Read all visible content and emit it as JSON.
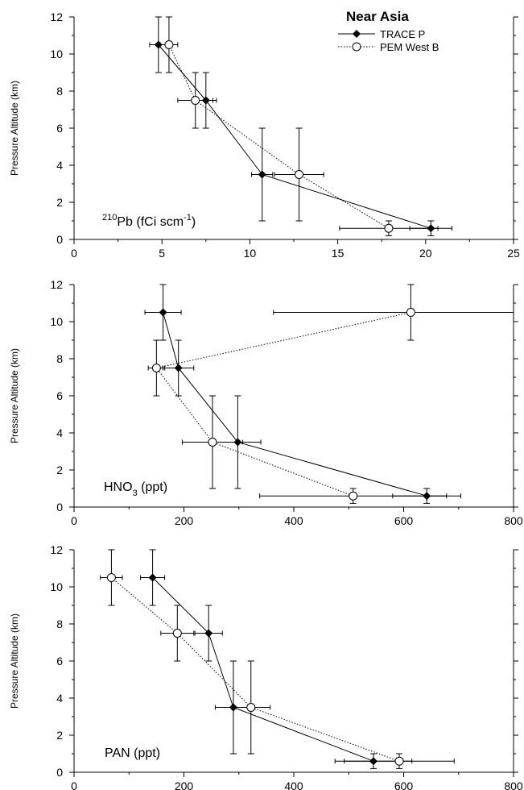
{
  "figure": {
    "title": "Near Asia",
    "legend": [
      {
        "label": "TRACE P",
        "marker": "filled-diamond",
        "line": "solid"
      },
      {
        "label": "PEM West B",
        "marker": "open-circle",
        "line": "dotted"
      }
    ]
  },
  "chart_data": [
    {
      "type": "scatter",
      "species_main": "Pb (fCi scm",
      "species_pre": "210",
      "species_sup": "-1",
      "species_post": ")",
      "ylabel": "Pressure Altitude (km)",
      "xlim": [
        0,
        25
      ],
      "ylim": [
        0,
        12
      ],
      "xticks": [
        "0",
        "5",
        "10",
        "15",
        "20",
        "25"
      ],
      "yticks": [
        "0",
        "2",
        "4",
        "6",
        "8",
        "10",
        "12"
      ],
      "series": [
        {
          "name": "TRACE P",
          "points": [
            {
              "x": 4.8,
              "y": 10.5,
              "xerr": 0.5,
              "ylo": 9,
              "yhi": 12
            },
            {
              "x": 7.5,
              "y": 7.5,
              "xerr": 0.6,
              "ylo": 6,
              "yhi": 9
            },
            {
              "x": 10.7,
              "y": 3.5,
              "xerr": 0.6,
              "ylo": 1,
              "yhi": 6
            },
            {
              "x": 20.3,
              "y": 0.6,
              "xerr": 1.2,
              "ylo": 0.2,
              "yhi": 1
            }
          ]
        },
        {
          "name": "PEM West B",
          "points": [
            {
              "x": 5.4,
              "y": 10.5,
              "xerr": 0.5,
              "ylo": 9,
              "yhi": 12
            },
            {
              "x": 6.9,
              "y": 7.5,
              "xerr": 1.0,
              "ylo": 6,
              "yhi": 9
            },
            {
              "x": 12.8,
              "y": 3.5,
              "xerr": 1.4,
              "ylo": 1,
              "yhi": 6
            },
            {
              "x": 17.9,
              "y": 0.6,
              "xerr": 2.8,
              "ylo": 0.2,
              "yhi": 1
            }
          ]
        }
      ]
    },
    {
      "type": "scatter",
      "species_main": "HNO",
      "species_sub": "3",
      "species_post": " (ppt)",
      "ylabel": "Pressure Altitude (km)",
      "xlim": [
        0,
        800
      ],
      "ylim": [
        0,
        12
      ],
      "xticks": [
        "0",
        "200",
        "400",
        "600",
        "800"
      ],
      "yticks": [
        "0",
        "2",
        "4",
        "6",
        "8",
        "10",
        "12"
      ],
      "series": [
        {
          "name": "TRACE P",
          "points": [
            {
              "x": 162,
              "y": 10.5,
              "xerr": 33,
              "ylo": 9,
              "yhi": 12
            },
            {
              "x": 190,
              "y": 7.5,
              "xerr": 28,
              "ylo": 6,
              "yhi": 9
            },
            {
              "x": 298,
              "y": 3.5,
              "xerr": 42,
              "ylo": 1,
              "yhi": 6
            },
            {
              "x": 642,
              "y": 0.6,
              "xerr": 62,
              "ylo": 0.2,
              "yhi": 1
            }
          ]
        },
        {
          "name": "PEM West B",
          "points": [
            {
              "x": 613,
              "y": 10.5,
              "xerr": 250,
              "ylo": 9,
              "yhi": 12
            },
            {
              "x": 150,
              "y": 7.5,
              "xerr": 15,
              "ylo": 6,
              "yhi": 9
            },
            {
              "x": 252,
              "y": 3.5,
              "xerr": 55,
              "ylo": 1,
              "yhi": 6
            },
            {
              "x": 508,
              "y": 0.6,
              "xerr": 170,
              "ylo": 0.2,
              "yhi": 1
            }
          ]
        }
      ]
    },
    {
      "type": "scatter",
      "species_main": "PAN",
      "species_post": "  (ppt)",
      "ylabel": "Pressure Altitude (km)",
      "xlim": [
        0,
        800
      ],
      "ylim": [
        0,
        12
      ],
      "xticks": [
        "0",
        "200",
        "400",
        "600",
        "800"
      ],
      "yticks": [
        "0",
        "2",
        "4",
        "6",
        "8",
        "10",
        "12"
      ],
      "series": [
        {
          "name": "TRACE P",
          "points": [
            {
              "x": 143,
              "y": 10.5,
              "xerr": 22,
              "ylo": 9,
              "yhi": 12
            },
            {
              "x": 245,
              "y": 7.5,
              "xerr": 25,
              "ylo": 6,
              "yhi": 9
            },
            {
              "x": 290,
              "y": 3.5,
              "xerr": 33,
              "ylo": 1,
              "yhi": 6
            },
            {
              "x": 545,
              "y": 0.6,
              "xerr": 70,
              "ylo": 0.2,
              "yhi": 1
            }
          ]
        },
        {
          "name": "PEM West B",
          "points": [
            {
              "x": 68,
              "y": 10.5,
              "xerr": 20,
              "ylo": 9,
              "yhi": 12
            },
            {
              "x": 188,
              "y": 7.5,
              "xerr": 30,
              "ylo": 6,
              "yhi": 9
            },
            {
              "x": 322,
              "y": 3.5,
              "xerr": 35,
              "ylo": 1,
              "yhi": 6
            },
            {
              "x": 592,
              "y": 0.6,
              "xerr": 100,
              "ylo": 0.2,
              "yhi": 1
            }
          ]
        }
      ]
    }
  ]
}
